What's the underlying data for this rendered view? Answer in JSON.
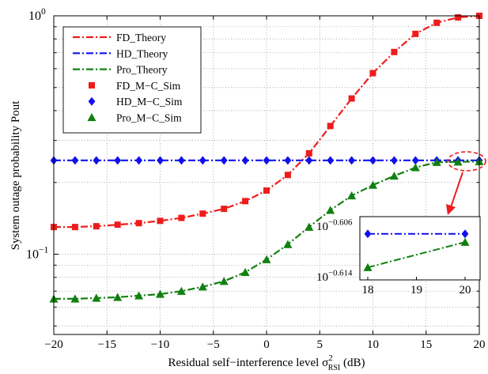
{
  "chart_data": {
    "type": "line",
    "xlabel_main": "Residual self−interference level σ",
    "xlabel_sup": "2",
    "xlabel_sub": "RSI",
    "xlabel_unit": " (dB)",
    "ylabel": "System outage probability Pout",
    "xlim": [
      -20,
      20
    ],
    "ylim": [
      0.05,
      1.0
    ],
    "yscale": "log",
    "grid": true,
    "legend_position": "top-left",
    "x_ticks": [
      "−20",
      "−15",
      "−10",
      "−5",
      "0",
      "5",
      "10",
      "15",
      "20"
    ],
    "y_tick_major": [
      {
        "base": "10",
        "exp": "0"
      },
      {
        "base": "10",
        "exp": "−1"
      }
    ],
    "colors": {
      "fd": "#ee1c1c",
      "hd": "#1010ee",
      "pro": "#108010"
    },
    "series": [
      {
        "name": "FD_Theory",
        "style": "dashdot",
        "color": "#ee1c1c",
        "x": [
          -20,
          -18,
          -16,
          -14,
          -12,
          -10,
          -8,
          -6,
          -4,
          -2,
          0,
          2,
          4,
          6,
          8,
          10,
          12,
          14,
          16,
          18,
          20
        ],
        "y": [
          0.13,
          0.13,
          0.131,
          0.133,
          0.135,
          0.138,
          0.142,
          0.148,
          0.155,
          0.167,
          0.185,
          0.215,
          0.265,
          0.345,
          0.45,
          0.575,
          0.705,
          0.84,
          0.935,
          0.985,
          1.0
        ]
      },
      {
        "name": "HD_Theory",
        "style": "dashdot",
        "color": "#1010ee",
        "x": [
          -20,
          20
        ],
        "y": [
          0.2475,
          0.2475
        ]
      },
      {
        "name": "Pro_Theory",
        "style": "dashdot",
        "color": "#108010",
        "x": [
          -20,
          -18,
          -16,
          -14,
          -12,
          -10,
          -8,
          -6,
          -4,
          -2,
          0,
          2,
          4,
          6,
          8,
          10,
          12,
          14,
          16,
          18,
          20
        ],
        "y": [
          0.065,
          0.065,
          0.0655,
          0.066,
          0.067,
          0.068,
          0.07,
          0.073,
          0.077,
          0.084,
          0.095,
          0.11,
          0.13,
          0.153,
          0.176,
          0.195,
          0.213,
          0.231,
          0.243,
          0.244,
          0.245
        ]
      },
      {
        "name": "FD_M−C_Sim",
        "style": "marker",
        "marker": "square",
        "color": "#ee1c1c",
        "x": [
          -20,
          -18,
          -16,
          -14,
          -12,
          -10,
          -8,
          -6,
          -4,
          -2,
          0,
          2,
          4,
          6,
          8,
          10,
          12,
          14,
          16,
          18,
          20
        ],
        "y": [
          0.13,
          0.13,
          0.131,
          0.133,
          0.135,
          0.138,
          0.142,
          0.148,
          0.155,
          0.167,
          0.185,
          0.215,
          0.265,
          0.345,
          0.45,
          0.575,
          0.705,
          0.84,
          0.935,
          0.985,
          1.0
        ]
      },
      {
        "name": "HD_M−C_Sim",
        "style": "marker",
        "marker": "diamond",
        "color": "#1010ee",
        "x": [
          -20,
          -18,
          -16,
          -14,
          -12,
          -10,
          -8,
          -6,
          -4,
          -2,
          0,
          2,
          4,
          6,
          8,
          10,
          12,
          14,
          16,
          18,
          20
        ],
        "y": [
          0.2475,
          0.2475,
          0.2475,
          0.2475,
          0.2475,
          0.2475,
          0.2475,
          0.2475,
          0.2475,
          0.2475,
          0.2475,
          0.2475,
          0.2475,
          0.2475,
          0.2475,
          0.2475,
          0.2475,
          0.2475,
          0.2475,
          0.2475,
          0.2475
        ]
      },
      {
        "name": "Pro_M−C_Sim",
        "style": "marker",
        "marker": "triangle",
        "color": "#108010",
        "x": [
          -20,
          -18,
          -16,
          -14,
          -12,
          -10,
          -8,
          -6,
          -4,
          -2,
          0,
          2,
          4,
          6,
          8,
          10,
          12,
          14,
          16,
          18,
          20
        ],
        "y": [
          0.065,
          0.065,
          0.0655,
          0.066,
          0.067,
          0.068,
          0.07,
          0.073,
          0.077,
          0.084,
          0.095,
          0.11,
          0.13,
          0.153,
          0.176,
          0.195,
          0.213,
          0.231,
          0.243,
          0.244,
          0.245
        ]
      }
    ],
    "inset": {
      "x_ticks": [
        "18",
        "19",
        "20"
      ],
      "xlim": [
        18,
        20
      ],
      "ylim_exp": [
        -0.614,
        -0.606
      ],
      "y_tick_labels": [
        {
          "base": "10",
          "exp": "−0.606"
        },
        {
          "base": "10",
          "exp": "−0.614"
        }
      ],
      "hd": {
        "x": [
          18,
          20
        ],
        "y_exp": [
          -0.6071,
          -0.6071
        ]
      },
      "pro": {
        "x": [
          18,
          20
        ],
        "y_exp": [
          -0.6124,
          -0.6084
        ]
      }
    }
  }
}
